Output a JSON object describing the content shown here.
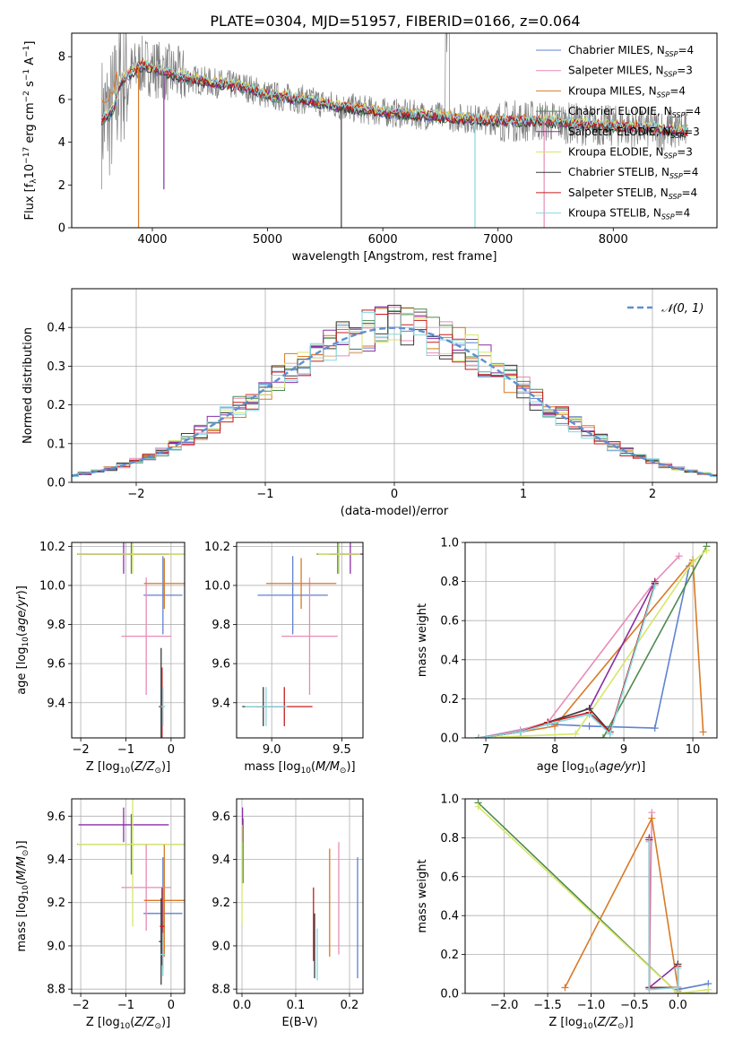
{
  "figure_title": "PLATE=0304, MJD=51957, FIBERID=0166, z=0.064",
  "colors": {
    "c0": "#5f83d0",
    "c1": "#e88bb8",
    "c2": "#d97a26",
    "c3": "#4f8a4f",
    "c4": "#8a2ea3",
    "c5": "#d7e66a",
    "c6": "#3a3a3a",
    "c7": "#c81c1c",
    "c8": "#84d8e0",
    "data": "#808080",
    "normal": "#5f8fd0"
  },
  "legend": [
    {
      "name": "Chabrier MILES",
      "n": "4"
    },
    {
      "name": "Salpeter MILES",
      "n": "3"
    },
    {
      "name": "Kroupa MILES",
      "n": "4"
    },
    {
      "name": "Chabrier ELODIE",
      "n": "4"
    },
    {
      "name": "Salpeter ELODIE",
      "n": "3"
    },
    {
      "name": "Kroupa ELODIE",
      "n": "3"
    },
    {
      "name": "Chabrier STELIB",
      "n": "4"
    },
    {
      "name": "Salpeter STELIB",
      "n": "4"
    },
    {
      "name": "Kroupa STELIB",
      "n": "4"
    }
  ],
  "hist_legend": "𝒩(0, 1)",
  "chart_data": [
    {
      "id": "spectrum",
      "type": "line",
      "xlabel": "wavelength [Angstrom, rest frame]",
      "ylabel": "Flux [f_λ 10^-17 erg cm^-2 s^-1 A^-1]",
      "xlim": [
        3300,
        8900
      ],
      "ylim": [
        0,
        9.1
      ],
      "xticks": [
        4000,
        5000,
        6000,
        7000,
        8000
      ],
      "yticks": [
        0,
        2,
        4,
        6,
        8
      ],
      "model_continuum": [
        [
          3560,
          5.0
        ],
        [
          3650,
          5.4
        ],
        [
          3720,
          6.8
        ],
        [
          3800,
          7.2
        ],
        [
          3900,
          7.6
        ],
        [
          4000,
          7.5
        ],
        [
          4100,
          7.3
        ],
        [
          4300,
          7.0
        ],
        [
          4500,
          6.8
        ],
        [
          4800,
          6.6
        ],
        [
          5000,
          6.2
        ],
        [
          5300,
          6.0
        ],
        [
          5600,
          5.7
        ],
        [
          6000,
          5.4
        ],
        [
          6500,
          5.2
        ],
        [
          7000,
          5.0
        ],
        [
          7400,
          5.0
        ],
        [
          7800,
          4.8
        ],
        [
          8200,
          4.7
        ],
        [
          8650,
          4.5
        ]
      ],
      "model_dips": [
        [
          3880,
          0.0
        ],
        [
          4100,
          1.8
        ],
        [
          5640,
          0.0
        ],
        [
          6800,
          0.0
        ],
        [
          7400,
          0.0
        ]
      ]
    },
    {
      "id": "residual_hist",
      "type": "histogram",
      "xlabel": "(data-model)/error",
      "ylabel": "Normed distribution",
      "xlim": [
        -2.5,
        2.5
      ],
      "ylim": [
        0,
        0.5
      ],
      "xticks": [
        -2,
        -1,
        0,
        1,
        2
      ],
      "yticks": [
        0.0,
        0.1,
        0.2,
        0.3,
        0.4
      ],
      "bin_width": 0.1,
      "series_reference": "N(0,1)"
    },
    {
      "id": "age_vs_Z",
      "type": "scatter",
      "xlabel": "Z [log10(Z/Z⊙)]",
      "ylabel": "age [log10(age/yr)]",
      "xlim": [
        -2.2,
        0.3
      ],
      "ylim": [
        9.22,
        10.22
      ],
      "xticks": [
        -2,
        -1,
        0
      ],
      "yticks": [
        9.4,
        9.6,
        9.8,
        10.0,
        10.2
      ],
      "points": [
        {
          "s": 0,
          "x": -0.18,
          "y": 9.95,
          "ex": 0.43,
          "ey": 0.2
        },
        {
          "s": 1,
          "x": -0.55,
          "y": 9.74,
          "ex": 0.55,
          "ey": 0.3
        },
        {
          "s": 2,
          "x": -0.15,
          "y": 10.01,
          "ex": 0.45,
          "ey": 0.13
        },
        {
          "s": 3,
          "x": -0.88,
          "y": 10.16,
          "ex": 1.2,
          "ey": 0.1
        },
        {
          "s": 4,
          "x": -1.05,
          "y": 10.16,
          "ex": 1.0,
          "ey": 0.1
        },
        {
          "s": 5,
          "x": -0.85,
          "y": 10.16,
          "ex": 1.22,
          "ey": 0.1
        },
        {
          "s": 6,
          "x": -0.22,
          "y": 9.38,
          "ex": 0.05,
          "ey": 0.3
        },
        {
          "s": 7,
          "x": -0.2,
          "y": 9.38,
          "ex": 0.05,
          "ey": 0.2
        },
        {
          "s": 8,
          "x": -0.18,
          "y": 9.38,
          "ex": 0.05,
          "ey": 0.1
        }
      ]
    },
    {
      "id": "age_vs_mass",
      "type": "scatter",
      "xlabel": "mass [log10(M/M⊙)]",
      "ylabel": "",
      "xlim": [
        8.75,
        9.65
      ],
      "ylim": [
        9.22,
        10.22
      ],
      "xticks": [
        9.0,
        9.5
      ],
      "yticks": [
        9.4,
        9.6,
        9.8,
        10.0,
        10.2
      ],
      "points": [
        {
          "s": 0,
          "x": 9.15,
          "y": 9.95,
          "ex": 0.25,
          "ey": 0.2
        },
        {
          "s": 1,
          "x": 9.27,
          "y": 9.74,
          "ex": 0.2,
          "ey": 0.3
        },
        {
          "s": 2,
          "x": 9.21,
          "y": 10.01,
          "ex": 0.25,
          "ey": 0.13
        },
        {
          "s": 3,
          "x": 9.47,
          "y": 10.16,
          "ex": 0.15,
          "ey": 0.1
        },
        {
          "s": 4,
          "x": 9.56,
          "y": 10.16,
          "ex": 0.15,
          "ey": 0.1
        },
        {
          "s": 5,
          "x": 9.48,
          "y": 10.16,
          "ex": 0.15,
          "ey": 0.1
        },
        {
          "s": 6,
          "x": 8.94,
          "y": 9.38,
          "ex": 0.15,
          "ey": 0.1
        },
        {
          "s": 7,
          "x": 9.09,
          "y": 9.38,
          "ex": 0.2,
          "ey": 0.1
        },
        {
          "s": 8,
          "x": 8.96,
          "y": 9.38,
          "ex": 0.15,
          "ey": 0.1
        }
      ]
    },
    {
      "id": "weight_vs_age",
      "type": "line",
      "xlabel": "age [log10(age/yr)]",
      "ylabel": "mass weight",
      "xlim": [
        6.7,
        10.35
      ],
      "ylim": [
        0,
        1
      ],
      "xticks": [
        7,
        8,
        9,
        10
      ],
      "yticks": [
        0.0,
        0.2,
        0.4,
        0.6,
        0.8,
        1.0
      ],
      "series": [
        {
          "s": 0,
          "x": [
            6.9,
            7.9,
            8.5,
            9.45,
            9.95
          ],
          "y": [
            0.0,
            0.07,
            0.06,
            0.05,
            0.88
          ]
        },
        {
          "s": 1,
          "x": [
            6.9,
            7.5,
            7.9,
            9.45,
            9.8
          ],
          "y": [
            0.0,
            0.04,
            0.08,
            0.8,
            0.93
          ]
        },
        {
          "s": 2,
          "x": [
            6.9,
            7.5,
            8.0,
            10.0,
            10.15
          ],
          "y": [
            0.0,
            0.03,
            0.06,
            0.91,
            0.03
          ]
        },
        {
          "s": 3,
          "x": [
            6.9,
            8.7,
            10.2
          ],
          "y": [
            0.0,
            0.0,
            0.98
          ]
        },
        {
          "s": 4,
          "x": [
            6.9,
            7.5,
            7.9,
            8.5,
            9.45
          ],
          "y": [
            0.0,
            0.03,
            0.08,
            0.15,
            0.8
          ]
        },
        {
          "s": 5,
          "x": [
            6.9,
            8.3,
            10.0,
            10.2
          ],
          "y": [
            0.0,
            0.02,
            0.9,
            0.96
          ]
        },
        {
          "s": 6,
          "x": [
            6.9,
            7.5,
            7.9,
            8.5,
            8.8,
            9.45
          ],
          "y": [
            0.0,
            0.03,
            0.08,
            0.15,
            0.03,
            0.79
          ]
        },
        {
          "s": 7,
          "x": [
            6.9,
            7.5,
            7.9,
            8.5,
            8.8,
            9.45
          ],
          "y": [
            0.0,
            0.03,
            0.08,
            0.13,
            0.03,
            0.79
          ]
        },
        {
          "s": 8,
          "x": [
            6.9,
            7.5,
            7.9,
            8.5,
            8.8,
            9.45
          ],
          "y": [
            0.0,
            0.03,
            0.07,
            0.12,
            0.02,
            0.78
          ]
        }
      ]
    },
    {
      "id": "mass_vs_Z",
      "type": "scatter",
      "xlabel": "Z [log10(Z/Z⊙)]",
      "ylabel": "mass [log10(M/M⊙)]",
      "xlim": [
        -2.2,
        0.3
      ],
      "ylim": [
        8.78,
        9.68
      ],
      "xticks": [
        -2,
        -1,
        0
      ],
      "yticks": [
        8.8,
        9.0,
        9.2,
        9.4,
        9.6
      ],
      "points": [
        {
          "s": 0,
          "x": -0.18,
          "y": 9.15,
          "ex": 0.43,
          "ey": 0.26
        },
        {
          "s": 1,
          "x": -0.55,
          "y": 9.27,
          "ex": 0.55,
          "ey": 0.2
        },
        {
          "s": 2,
          "x": -0.15,
          "y": 9.21,
          "ex": 0.45,
          "ey": 0.26
        },
        {
          "s": 3,
          "x": -0.88,
          "y": 9.47,
          "ex": 1.2,
          "ey": 0.14
        },
        {
          "s": 4,
          "x": -1.05,
          "y": 9.56,
          "ex": 1.0,
          "ey": 0.08
        },
        {
          "s": 5,
          "x": -0.85,
          "y": 9.47,
          "ex": 1.22,
          "ey": 0.38
        },
        {
          "s": 6,
          "x": -0.22,
          "y": 9.02,
          "ex": 0.05,
          "ey": 0.2
        },
        {
          "s": 7,
          "x": -0.2,
          "y": 9.09,
          "ex": 0.05,
          "ey": 0.18
        },
        {
          "s": 8,
          "x": -0.18,
          "y": 8.96,
          "ex": 0.05,
          "ey": 0.1
        }
      ]
    },
    {
      "id": "mass_vs_ebv",
      "type": "scatter",
      "xlabel": "E(B-V)",
      "ylabel": "",
      "xlim": [
        -0.01,
        0.225
      ],
      "ylim": [
        8.78,
        9.68
      ],
      "xticks": [
        0.0,
        0.1,
        0.2
      ],
      "yticks": [
        8.8,
        9.0,
        9.2,
        9.4,
        9.6
      ],
      "points": [
        {
          "s": 0,
          "x": 0.215,
          "y": 9.13,
          "ex": 0,
          "ey": 0.28
        },
        {
          "s": 1,
          "x": 0.18,
          "y": 9.22,
          "ex": 0,
          "ey": 0.26
        },
        {
          "s": 2,
          "x": 0.163,
          "y": 9.2,
          "ex": 0,
          "ey": 0.25
        },
        {
          "s": 3,
          "x": 0.002,
          "y": 9.44,
          "ex": 0,
          "ey": 0.15
        },
        {
          "s": 4,
          "x": 0.001,
          "y": 9.56,
          "ex": 0,
          "ey": 0.08
        },
        {
          "s": 5,
          "x": 0.0,
          "y": 9.33,
          "ex": 0,
          "ey": 0.23
        },
        {
          "s": 6,
          "x": 0.135,
          "y": 9.0,
          "ex": 0,
          "ey": 0.15
        },
        {
          "s": 7,
          "x": 0.133,
          "y": 9.1,
          "ex": 0,
          "ey": 0.17
        },
        {
          "s": 8,
          "x": 0.14,
          "y": 8.96,
          "ex": 0,
          "ey": 0.12
        }
      ]
    },
    {
      "id": "weight_vs_Z",
      "type": "line",
      "xlabel": "Z [log10(Z/Z⊙)]",
      "ylabel": "mass weight",
      "xlim": [
        -2.45,
        0.45
      ],
      "ylim": [
        0,
        1
      ],
      "xticks": [
        -2.0,
        -1.5,
        -1.0,
        -0.5,
        0.0
      ],
      "yticks": [
        0.0,
        0.2,
        0.4,
        0.6,
        0.8,
        1.0
      ],
      "series": [
        {
          "s": 0,
          "x": [
            -0.33,
            -0.33,
            0.0,
            0.0,
            0.35
          ],
          "y": [
            0.79,
            0.03,
            0.03,
            0.02,
            0.05
          ]
        },
        {
          "s": 1,
          "x": [
            -0.3,
            -0.33,
            0.0
          ],
          "y": [
            0.93,
            0.03,
            0.03
          ]
        },
        {
          "s": 2,
          "x": [
            -1.3,
            -0.3,
            0.0,
            0.0
          ],
          "y": [
            0.03,
            0.9,
            0.03,
            0.01
          ]
        },
        {
          "s": 3,
          "x": [
            -2.3,
            0.0,
            0.35
          ],
          "y": [
            0.98,
            0.0,
            0.0
          ]
        },
        {
          "s": 4,
          "x": [
            -0.33,
            -0.33,
            0.0
          ],
          "y": [
            0.8,
            0.03,
            0.15
          ]
        },
        {
          "s": 5,
          "x": [
            -2.3,
            0.0,
            0.35
          ],
          "y": [
            0.96,
            0.0,
            0.02
          ]
        },
        {
          "s": 6,
          "x": [
            -0.33,
            -0.33,
            0.0,
            0.0
          ],
          "y": [
            0.79,
            0.03,
            0.03,
            0.15
          ]
        },
        {
          "s": 7,
          "x": [
            -0.33,
            -0.33,
            0.0,
            0.0
          ],
          "y": [
            0.79,
            0.03,
            0.03,
            0.14
          ]
        },
        {
          "s": 8,
          "x": [
            -0.33,
            -0.33,
            0.0,
            0.0
          ],
          "y": [
            0.78,
            0.02,
            0.03,
            0.13
          ]
        }
      ]
    }
  ]
}
